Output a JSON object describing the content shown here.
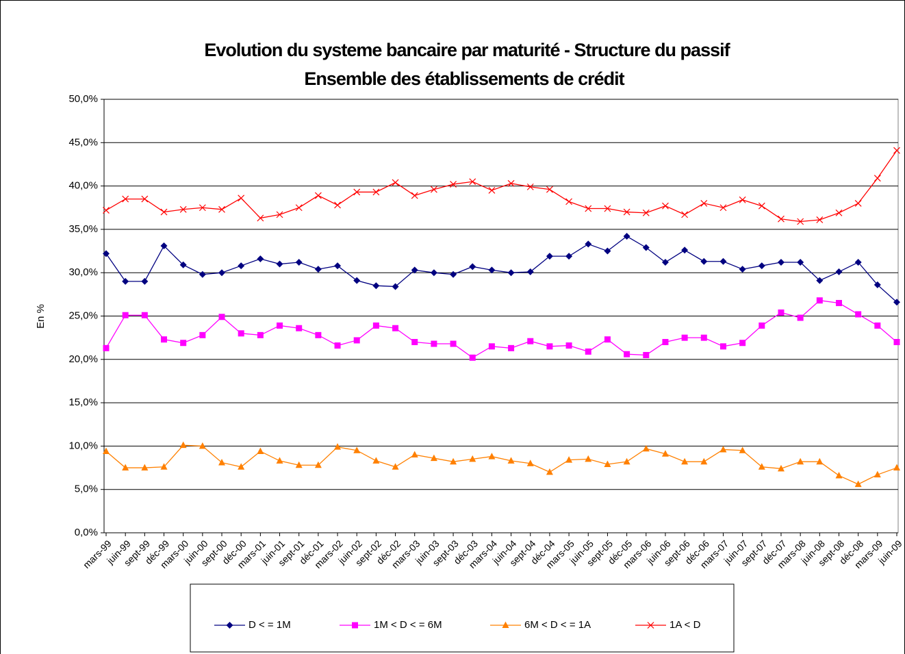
{
  "chart_data": {
    "type": "line",
    "title": "Evolution du systeme bancaire par maturité - Structure du passif",
    "subtitle": "Ensemble des établissements de crédit",
    "y_label": "En %",
    "categories": [
      "mars-99",
      "juin-99",
      "sept-99",
      "déc-99",
      "mars-00",
      "juin-00",
      "sept-00",
      "déc-00",
      "mars-01",
      "juin-01",
      "sept-01",
      "déc-01",
      "mars-02",
      "juin-02",
      "sept-02",
      "déc-02",
      "mars-03",
      "juin-03",
      "sept-03",
      "déc-03",
      "mars-04",
      "juin-04",
      "sept-04",
      "déc-04",
      "mars-05",
      "juin-05",
      "sept-05",
      "déc-05",
      "mars-06",
      "juin-06",
      "sept-06",
      "déc-06",
      "mars-07",
      "juin-07",
      "sept-07",
      "déc-07",
      "mars-08",
      "juin-08",
      "sept-08",
      "déc-08",
      "mars-09",
      "juin-09"
    ],
    "series": [
      {
        "name": "D < = 1M",
        "color": "#000080",
        "marker": "diamond",
        "values": [
          32.2,
          29.0,
          29.0,
          33.1,
          30.9,
          29.8,
          30.0,
          30.8,
          31.6,
          31.0,
          31.2,
          30.4,
          30.8,
          29.1,
          28.5,
          28.4,
          30.3,
          30.0,
          29.8,
          30.7,
          30.3,
          30.0,
          30.1,
          31.9,
          31.9,
          33.3,
          32.5,
          34.2,
          32.9,
          31.2,
          32.6,
          31.3,
          31.3,
          30.4,
          30.8,
          31.2,
          31.2,
          29.1,
          30.1,
          31.2,
          28.6,
          26.6
        ]
      },
      {
        "name": "1M < D < = 6M",
        "color": "#ff00ff",
        "marker": "square",
        "values": [
          21.3,
          25.1,
          25.1,
          22.3,
          21.9,
          22.8,
          24.9,
          23.0,
          22.8,
          23.9,
          23.6,
          22.8,
          21.6,
          22.2,
          23.9,
          23.6,
          22.0,
          21.8,
          21.8,
          20.2,
          21.5,
          21.3,
          22.1,
          21.5,
          21.6,
          20.9,
          22.3,
          20.6,
          20.5,
          22.0,
          22.5,
          22.5,
          21.5,
          21.9,
          23.9,
          25.4,
          24.8,
          26.8,
          26.5,
          25.2,
          23.9,
          22.0
        ]
      },
      {
        "name": "6M < D < = 1A",
        "color": "#ff8000",
        "marker": "triangle",
        "values": [
          9.4,
          7.5,
          7.5,
          7.6,
          10.1,
          10.0,
          8.1,
          7.6,
          9.4,
          8.3,
          7.8,
          7.8,
          9.9,
          9.5,
          8.3,
          7.6,
          9.0,
          8.6,
          8.2,
          8.5,
          8.8,
          8.3,
          8.0,
          7.0,
          8.4,
          8.5,
          7.9,
          8.2,
          9.7,
          9.1,
          8.2,
          8.2,
          9.6,
          9.5,
          7.6,
          7.4,
          8.2,
          8.2,
          6.6,
          5.6,
          6.7,
          7.5
        ]
      },
      {
        "name": "1A < D",
        "color": "#ff0000",
        "marker": "x",
        "values": [
          37.2,
          38.5,
          38.5,
          37.0,
          37.3,
          37.5,
          37.3,
          38.6,
          36.3,
          36.7,
          37.5,
          38.9,
          37.8,
          39.3,
          39.3,
          40.4,
          38.9,
          39.6,
          40.2,
          40.5,
          39.5,
          40.3,
          39.9,
          39.6,
          38.2,
          37.4,
          37.4,
          37.0,
          36.9,
          37.7,
          36.7,
          38.0,
          37.5,
          38.4,
          37.7,
          36.2,
          35.9,
          36.1,
          36.9,
          38.0,
          40.9,
          44.1
        ]
      }
    ],
    "ylim": [
      0,
      50
    ],
    "yticks": [
      {
        "value": 0,
        "label": "0,0%"
      },
      {
        "value": 5,
        "label": "5,0%"
      },
      {
        "value": 10,
        "label": "10,0%"
      },
      {
        "value": 15,
        "label": "15,0%"
      },
      {
        "value": 20,
        "label": "20,0%"
      },
      {
        "value": 25,
        "label": "25,0%"
      },
      {
        "value": 30,
        "label": "30,0%"
      },
      {
        "value": 35,
        "label": "35,0%"
      },
      {
        "value": 40,
        "label": "40,0%"
      },
      {
        "value": 45,
        "label": "45,0%"
      },
      {
        "value": 50,
        "label": "50,0%"
      }
    ],
    "grid": true,
    "legend": "bottom"
  }
}
